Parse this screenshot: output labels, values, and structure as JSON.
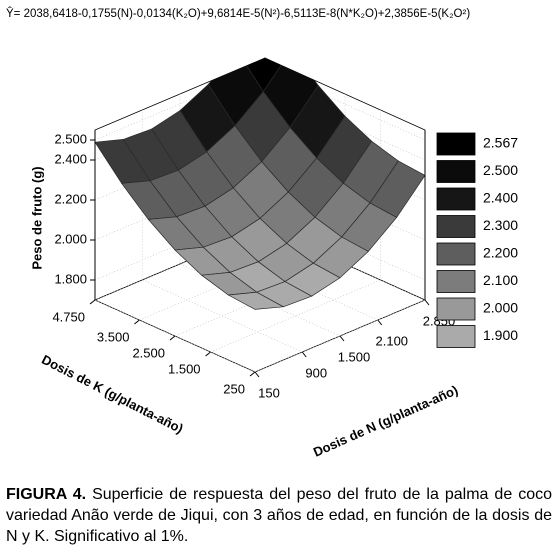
{
  "chart_data": {
    "type": "surface",
    "equation": "Ŷ= 2038,6418-0,1755(N)-0,0134(K₂O)+9,6814E-5(N²)-6,5113E-8(N*K₂O)+2,3856E-5(K₂O²)",
    "xlabel": "Dosis de N (g/planta-año)",
    "ylabel": "Dosis de K (g/planta-año)",
    "zlabel": "Peso de fruto (g)",
    "x": [
      150,
      600,
      1050,
      1500,
      1950,
      2400,
      2850
    ],
    "y": [
      250,
      1000,
      1750,
      2500,
      3250,
      4000,
      4750
    ],
    "z": [
      [
        2013,
        1966,
        1959,
        1991,
        2063,
        2173,
        2323
      ],
      [
        2025,
        1979,
        1972,
        2004,
        2075,
        2185,
        2335
      ],
      [
        2064,
        2018,
        2011,
        2043,
        2114,
        2224,
        2374
      ],
      [
        2130,
        2084,
        2076,
        2108,
        2180,
        2290,
        2439
      ],
      [
        2223,
        2176,
        2169,
        2201,
        2272,
        2383,
        2532
      ],
      [
        2343,
        2296,
        2289,
        2321,
        2392,
        2502,
        2651
      ],
      [
        2489,
        2443,
        2435,
        2467,
        2538,
        2648,
        2797
      ]
    ],
    "xlim": [
      150,
      2850
    ],
    "ylim": [
      250,
      4750
    ],
    "zlim": [
      1700,
      2550
    ],
    "xticks": [
      150,
      900,
      {
        "value": 1500,
        "label": "1.500"
      },
      {
        "value": 2100,
        "label": "2.100"
      },
      {
        "value": 2850,
        "label": "2.850"
      }
    ],
    "yticks": [
      250,
      {
        "value": 1500,
        "label": "1.500"
      },
      {
        "value": 2500,
        "label": "2.500"
      },
      {
        "value": 3500,
        "label": "3.500"
      },
      {
        "value": 4750,
        "label": "4.750"
      }
    ],
    "zticks": [
      {
        "value": 1800,
        "label": "1.800"
      },
      {
        "value": 2000,
        "label": "2.000"
      },
      {
        "value": 2200,
        "label": "2.200"
      },
      {
        "value": 2400,
        "label": "2.400"
      },
      {
        "value": 2500,
        "label": "2.500"
      }
    ],
    "grid": true,
    "legend": [
      {
        "value": 2567,
        "label": "2.567",
        "color": "#000000"
      },
      {
        "value": 2500,
        "label": "2.500",
        "color": "#0b0b0b"
      },
      {
        "value": 2400,
        "label": "2.400",
        "color": "#161616"
      },
      {
        "value": 2300,
        "label": "2.300",
        "color": "#3a3a3a"
      },
      {
        "value": 2200,
        "label": "2.200",
        "color": "#5e5e5e"
      },
      {
        "value": 2100,
        "label": "2.100",
        "color": "#7c7c7c"
      },
      {
        "value": 2000,
        "label": "2.000",
        "color": "#999999"
      },
      {
        "value": 1900,
        "label": "1.900",
        "color": "#aaaaaa"
      }
    ]
  },
  "caption": {
    "label": "FIGURA 4.",
    "text": "Superficie de respuesta del peso del fruto de la palma de coco variedad Anão verde de Jiqui, con 3 años de edad, en función de la dosis de N y K. Significativo al 1%."
  }
}
